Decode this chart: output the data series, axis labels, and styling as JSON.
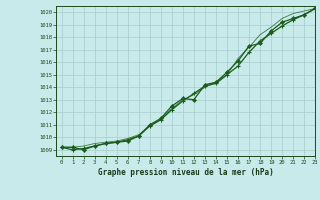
{
  "title": "Graphe pression niveau de la mer (hPa)",
  "background_color": "#c8eaea",
  "grid_color": "#a8cccc",
  "line_color": "#1a5c1a",
  "xlim": [
    -0.5,
    23
  ],
  "ylim": [
    1008.5,
    1020.5
  ],
  "yticks": [
    1009,
    1010,
    1011,
    1012,
    1013,
    1014,
    1015,
    1016,
    1017,
    1018,
    1019,
    1020
  ],
  "xticks": [
    0,
    1,
    2,
    3,
    4,
    5,
    6,
    7,
    8,
    9,
    10,
    11,
    12,
    13,
    14,
    15,
    16,
    17,
    18,
    19,
    20,
    21,
    22,
    23
  ],
  "series1": [
    1009.2,
    1009.2,
    1009.0,
    1009.3,
    1009.5,
    1009.6,
    1009.7,
    1010.1,
    1011.0,
    1011.5,
    1012.5,
    1013.1,
    1013.0,
    1014.2,
    1014.4,
    1015.2,
    1016.1,
    1017.3,
    1017.5,
    1018.5,
    1019.2,
    1019.5,
    1019.8,
    1020.3
  ],
  "series2": [
    1009.2,
    1009.0,
    1009.1,
    1009.3,
    1009.5,
    1009.6,
    1009.8,
    1010.1,
    1010.9,
    1011.4,
    1012.2,
    1012.9,
    1013.5,
    1014.1,
    1014.3,
    1015.0,
    1015.7,
    1016.8,
    1017.7,
    1018.3,
    1018.9,
    1019.4,
    1019.8,
    1020.3
  ],
  "series3": [
    1009.2,
    1009.2,
    1009.3,
    1009.5,
    1009.6,
    1009.7,
    1009.9,
    1010.2,
    1010.9,
    1011.4,
    1012.3,
    1013.0,
    1013.4,
    1014.0,
    1014.4,
    1015.0,
    1016.3,
    1017.2,
    1018.2,
    1018.8,
    1019.5,
    1019.9,
    1020.1,
    1020.3
  ]
}
